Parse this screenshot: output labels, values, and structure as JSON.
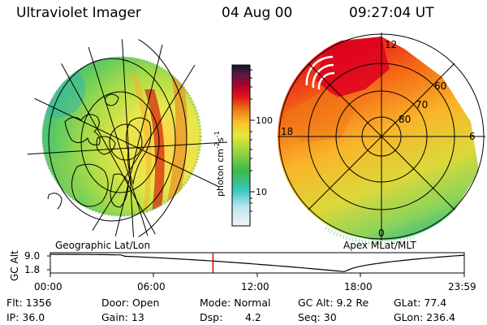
{
  "header": {
    "instrument": "Ultraviolet Imager",
    "date": "04 Aug 00",
    "time": "09:27:04 UT"
  },
  "colorbar": {
    "title": "photon cm",
    "title_exp1": "-2",
    "title_mid": "s",
    "title_exp2": "-1",
    "ticks": [
      "100",
      "10"
    ],
    "scale": "log"
  },
  "left_panel": {
    "caption": "Geographic Lat/Lon"
  },
  "right_panel": {
    "caption": "Apex MLat/MLT",
    "mlt_labels": {
      "top": "12",
      "right": "6",
      "bottom": "0",
      "left": "18"
    },
    "mlat_labels": [
      "60",
      "70",
      "80"
    ]
  },
  "altitude_plot": {
    "ylabel": "GC Alt",
    "yticks": [
      "9.0",
      "1.8"
    ],
    "xticks": [
      "00:00",
      "06:00",
      "12:00",
      "18:00",
      "23:59"
    ],
    "current_time_fraction": 0.393,
    "colors": {
      "marker": "#cc0000",
      "curve": "#000000"
    }
  },
  "info": {
    "flt": "Flt: 1356",
    "ip": "IP: 36.0",
    "door": "Door: Open",
    "gain": "Gain: 13",
    "mode": "Mode: Normal",
    "dsp_label": "Dsp:",
    "dsp_value": "4.2",
    "gc_alt": "GC Alt: 9.2 Re",
    "seq": "Seq: 30",
    "glat": "GLat:  77.4",
    "glon": "GLon: 236.4"
  }
}
